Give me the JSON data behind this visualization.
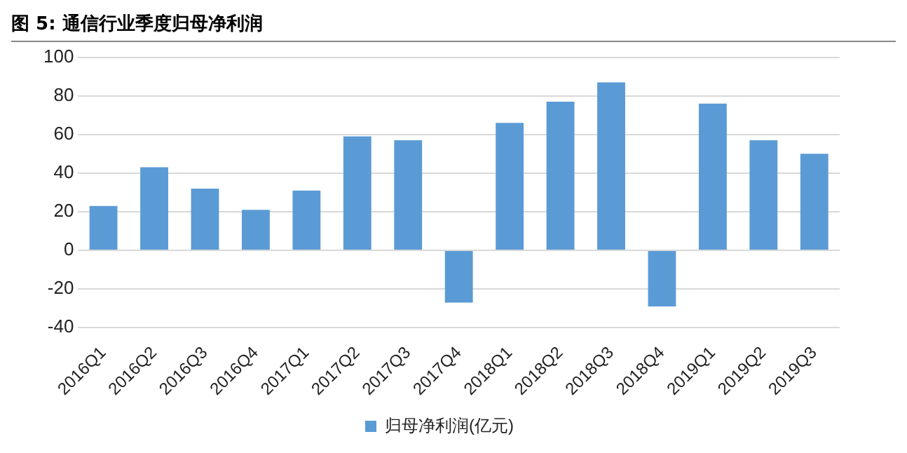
{
  "chart_data": {
    "type": "bar",
    "title": "图 5: 通信行业季度归母净利润",
    "categories": [
      "2016Q1",
      "2016Q2",
      "2016Q3",
      "2016Q4",
      "2017Q1",
      "2017Q2",
      "2017Q3",
      "2017Q4",
      "2018Q1",
      "2018Q2",
      "2018Q3",
      "2018Q4",
      "2019Q1",
      "2019Q2",
      "2019Q3"
    ],
    "series": [
      {
        "name": "归母净利润(亿元)",
        "color": "#5b9bd5",
        "values": [
          23,
          43,
          32,
          21,
          31,
          59,
          57,
          -27,
          66,
          77,
          87,
          -29,
          76,
          57,
          50
        ]
      }
    ],
    "ylim": [
      -40,
      100
    ],
    "yticks": [
      -40,
      -20,
      0,
      20,
      40,
      60,
      80,
      100
    ],
    "grid": "y",
    "legend": "bottom"
  }
}
